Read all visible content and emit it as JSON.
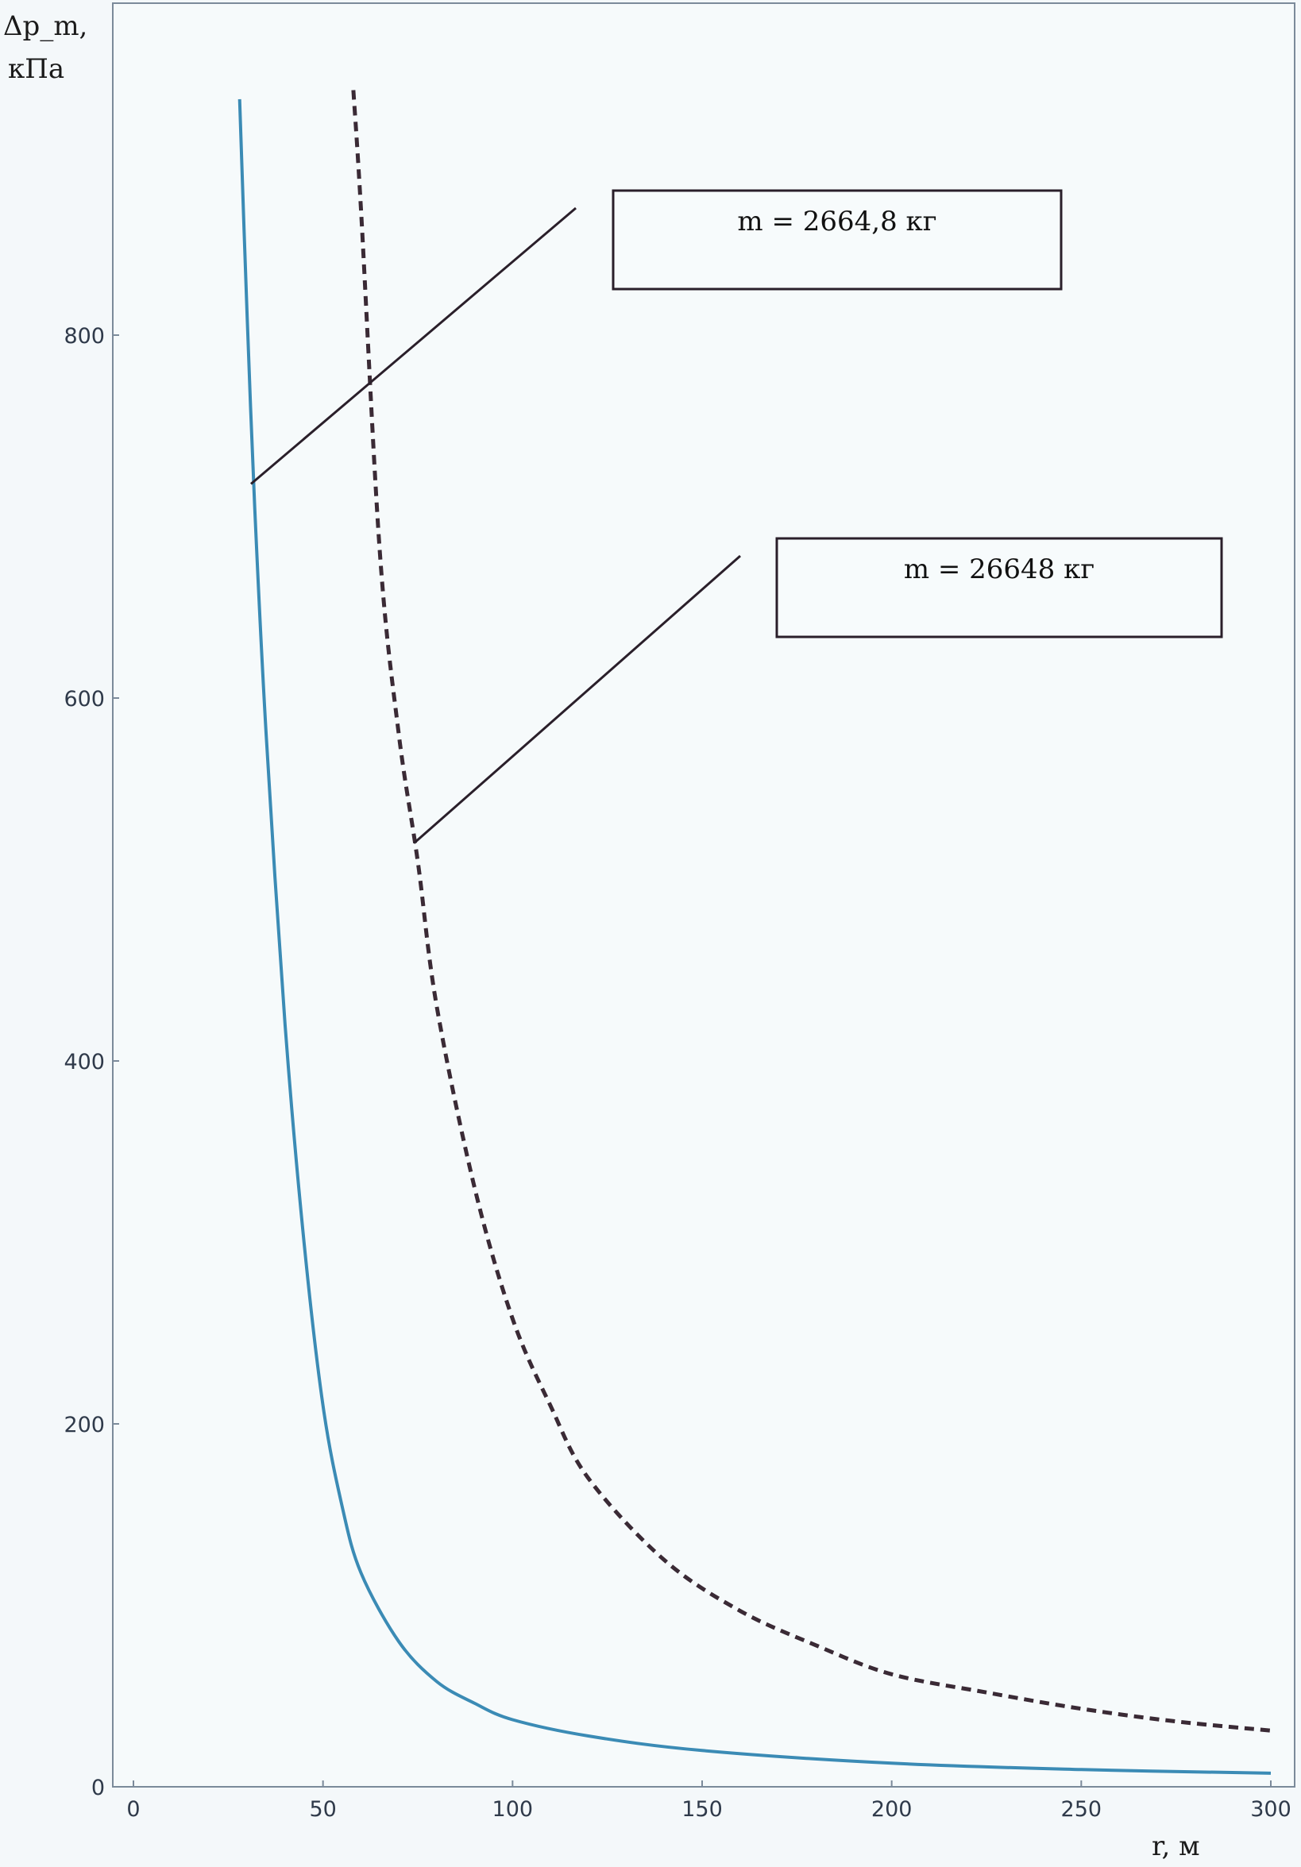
{
  "chart_data": {
    "type": "line",
    "ylabel": "Δp_m,",
    "ylabel_unit": "кПа",
    "xlabel": "r, м",
    "xlim": [
      0,
      300
    ],
    "ylim": [
      0,
      950
    ],
    "x_ticks": [
      "0",
      "50",
      "100",
      "150",
      "200",
      "250",
      "300"
    ],
    "y_ticks": [
      "0",
      "200",
      "400",
      "600",
      "800"
    ],
    "grid": true,
    "series": [
      {
        "name": "m = 2664,8 кг",
        "color": "#3b8bb5",
        "style": "solid",
        "x": [
          28,
          30,
          32,
          35,
          40,
          45,
          50,
          55,
          60,
          70,
          80,
          90,
          100,
          120,
          150,
          200,
          250,
          300
        ],
        "y": [
          930,
          810,
          705,
          580,
          420,
          300,
          210,
          155,
          118,
          80,
          58,
          46,
          37,
          28,
          20,
          13,
          9.5,
          7.5
        ]
      },
      {
        "name": "m = 26648 кг",
        "color": "#3a2a35",
        "style": "dashed",
        "x": [
          58,
          60,
          65,
          70,
          75,
          80,
          90,
          100,
          110,
          120,
          140,
          160,
          180,
          200,
          225,
          250,
          275,
          300
        ],
        "y": [
          935,
          870,
          680,
          580,
          510,
          430,
          330,
          258,
          210,
          170,
          125,
          97,
          78,
          62,
          52,
          43,
          36,
          31
        ]
      }
    ],
    "annotations": [
      {
        "label": "m = 2664,8 кг",
        "series": 0,
        "point": [
          31,
          718
        ]
      },
      {
        "label": "m = 26648 кг",
        "series": 1,
        "point": [
          74,
          520
        ]
      }
    ]
  }
}
